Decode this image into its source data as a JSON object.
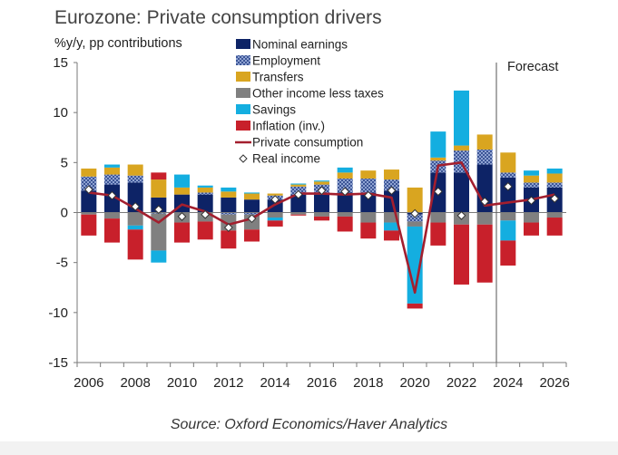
{
  "page": {
    "title": "Eurozone: Private consumption drivers",
    "y_axis_label": "%y/y, pp contributions",
    "source": "Source: Oxford Economics/Haver Analytics"
  },
  "chart_data": {
    "type": "bar",
    "stacked": true,
    "title": "Eurozone: Private consumption drivers",
    "ylabel": "%y/y, pp contributions",
    "xlabel": "",
    "ylim": [
      -15,
      15
    ],
    "yticks": [
      15,
      10,
      5,
      0,
      -5,
      -10,
      -15
    ],
    "x_tick_labels": [
      "2006",
      "2008",
      "2010",
      "2012",
      "2014",
      "2016",
      "2018",
      "2020",
      "2022",
      "2024",
      "2026"
    ],
    "forecast_label": "Forecast",
    "forecast_start_after": 2023,
    "grid": false,
    "legend_position": "top-center",
    "categories": [
      2006,
      2007,
      2008,
      2009,
      2010,
      2011,
      2012,
      2013,
      2014,
      2015,
      2016,
      2017,
      2018,
      2019,
      2020,
      2021,
      2022,
      2023,
      2024,
      2025,
      2026
    ],
    "series": [
      {
        "name": "Nominal earnings",
        "kind": "bar",
        "color": "#0d2366",
        "values": [
          2.2,
          2.8,
          3.0,
          1.5,
          1.8,
          1.8,
          1.5,
          1.3,
          1.3,
          1.8,
          1.8,
          2.0,
          2.0,
          2.2,
          -0.2,
          4.0,
          4.0,
          4.8,
          3.5,
          2.5,
          2.5
        ]
      },
      {
        "name": "Employment",
        "kind": "bar",
        "color": "#5f78b4",
        "pattern": "checker",
        "values": [
          1.4,
          1.0,
          0.7,
          -0.1,
          0.0,
          0.2,
          -0.2,
          -0.2,
          0.4,
          0.8,
          1.0,
          1.4,
          1.4,
          1.1,
          -0.7,
          1.2,
          2.2,
          1.5,
          0.5,
          0.5,
          0.5
        ]
      },
      {
        "name": "Transfers",
        "kind": "bar",
        "color": "#d9a520",
        "values": [
          0.8,
          0.7,
          1.1,
          1.8,
          0.7,
          0.5,
          0.6,
          0.6,
          0.2,
          0.2,
          0.3,
          0.6,
          0.8,
          1.0,
          2.5,
          0.3,
          0.5,
          1.5,
          2.0,
          0.7,
          0.9
        ]
      },
      {
        "name": "Other income less taxes",
        "kind": "bar",
        "color": "#808080",
        "values": [
          -0.2,
          -0.6,
          -1.3,
          -3.7,
          -1.0,
          -0.9,
          -1.6,
          -1.5,
          -0.5,
          -0.2,
          -0.4,
          -0.4,
          -1.0,
          -1.0,
          -0.5,
          -1.0,
          -1.2,
          -1.2,
          -0.8,
          -1.0,
          -0.5
        ]
      },
      {
        "name": "Savings",
        "kind": "bar",
        "color": "#14aee0",
        "values": [
          0.0,
          0.3,
          -0.4,
          -1.2,
          1.3,
          0.2,
          0.4,
          0.1,
          -0.3,
          0.1,
          0.1,
          0.5,
          0.0,
          -0.8,
          -7.7,
          2.6,
          5.5,
          0.0,
          -2.0,
          0.5,
          0.5
        ]
      },
      {
        "name": "Inflation (inv.)",
        "kind": "bar",
        "color": "#c8202b",
        "values": [
          -2.1,
          -2.4,
          -3.0,
          0.7,
          -2.0,
          -1.8,
          -1.8,
          -1.2,
          -0.6,
          -0.1,
          -0.4,
          -1.5,
          -1.6,
          -1.0,
          -0.5,
          -2.3,
          -6.0,
          -5.8,
          -2.5,
          -1.3,
          -1.8
        ]
      },
      {
        "name": "Private consumption",
        "kind": "line",
        "color": "#a31f2e",
        "values": [
          2.0,
          1.7,
          0.4,
          -1.0,
          0.8,
          0.1,
          -1.2,
          -0.6,
          0.8,
          1.9,
          1.9,
          1.8,
          1.9,
          1.5,
          -8.0,
          4.7,
          5.0,
          0.7,
          1.0,
          1.3,
          1.8
        ]
      },
      {
        "name": "Real income",
        "kind": "scatter",
        "marker": "diamond",
        "color": "#ffffff",
        "values": [
          2.3,
          1.7,
          0.6,
          0.3,
          -0.4,
          -0.2,
          -1.5,
          -0.6,
          1.3,
          1.8,
          2.2,
          2.1,
          1.7,
          2.2,
          -0.1,
          2.1,
          -0.3,
          1.1,
          2.6,
          1.2,
          1.4
        ]
      }
    ]
  }
}
